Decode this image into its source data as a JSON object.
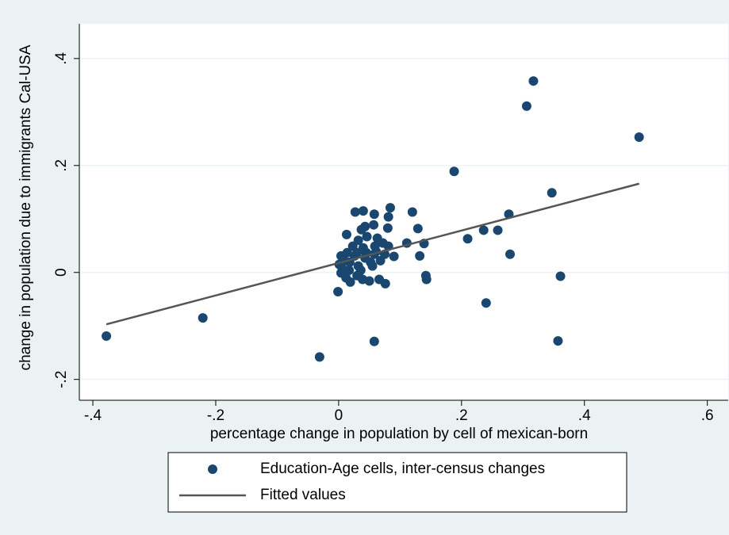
{
  "chart_data": {
    "type": "scatter",
    "xlabel": "percentage change in population by cell of mexican-born",
    "ylabel": "change in population due to immigrants Cal-USA",
    "xlim": [
      -0.422,
      0.634
    ],
    "ylim": [
      -0.239,
      0.465
    ],
    "xticks": [
      {
        "value": -0.4,
        "label": "-.4"
      },
      {
        "value": -0.2,
        "label": "-.2"
      },
      0,
      {
        "value": 0.2,
        "label": ".2"
      },
      {
        "value": 0.4,
        "label": ".4"
      },
      {
        "value": 0.6,
        "label": ".6"
      }
    ],
    "yticks": [
      {
        "value": -0.2,
        "label": "-.2"
      },
      0,
      {
        "value": 0.2,
        "label": ".2"
      },
      {
        "value": 0.4,
        "label": ".4"
      }
    ],
    "grid": true,
    "series": [
      {
        "name": "Education-Age cells, inter-census changes",
        "color": "#1a476f",
        "type": "scatter",
        "x": [
          -0.378,
          -0.221,
          -0.031,
          -0.001,
          0.058,
          0.188,
          0.21,
          0.236,
          0.24,
          0.259,
          0.279,
          0.277,
          0.306,
          0.317,
          0.347,
          0.357,
          0.361,
          0.489,
          0.12,
          0.129,
          0.132,
          0.139,
          0.142,
          0.143,
          0.111,
          0.09,
          0.076,
          0.066,
          0.05,
          0.027,
          0.04,
          0.084,
          0.081,
          0.058,
          0.08,
          0.013,
          0.057,
          0.043,
          0.037,
          0.046,
          0.063,
          0.059,
          0.072,
          0.081,
          0.058,
          0.055,
          0.032,
          0.018,
          0.004,
          0.006,
          0.004,
          0.012,
          0.019,
          0.03,
          0.036,
          0.026,
          0.045,
          0.052,
          0.068,
          0.023,
          0.032,
          0.04,
          0.014,
          0.009,
          0.001,
          0.017,
          0.039,
          0.061,
          0.075,
          0.043,
          0.03
        ],
        "values": [
          -0.119,
          -0.085,
          -0.158,
          -0.036,
          -0.129,
          0.189,
          0.063,
          0.079,
          -0.057,
          0.079,
          0.034,
          0.109,
          0.311,
          0.358,
          0.149,
          -0.128,
          -0.007,
          0.253,
          0.113,
          0.082,
          0.031,
          0.054,
          -0.006,
          -0.013,
          0.055,
          0.03,
          -0.021,
          -0.013,
          -0.016,
          0.113,
          0.115,
          0.121,
          0.104,
          0.109,
          0.083,
          0.071,
          0.089,
          0.086,
          0.08,
          0.067,
          0.064,
          0.049,
          0.055,
          0.049,
          0.034,
          0.012,
          0.012,
          0.019,
          0.031,
          0.007,
          -0.001,
          -0.01,
          -0.018,
          -0.006,
          0.004,
          0.031,
          0.037,
          0.019,
          0.022,
          0.049,
          0.06,
          0.046,
          0.037,
          0.022,
          0.015,
          0.004,
          -0.013,
          0.039,
          0.034,
          0.027,
          0.037
        ]
      },
      {
        "name": "Fitted values",
        "color": "#555555",
        "type": "line",
        "x": [
          -0.378,
          0.489
        ],
        "values": [
          -0.097,
          0.166
        ]
      }
    ]
  }
}
